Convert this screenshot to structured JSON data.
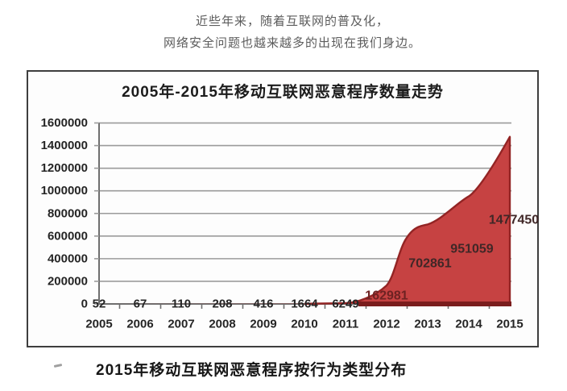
{
  "intro": {
    "line1": "近些年来，随着互联网的普及化，",
    "line2": "网络安全问题也越来越多的出现在我们身边。",
    "color": "#5c5c5c"
  },
  "chart_data": {
    "type": "area",
    "title": "2005年-2015年移动互联网恶意程序数量走势",
    "categories": [
      "2005",
      "2006",
      "2007",
      "2008",
      "2009",
      "2010",
      "2011",
      "2012",
      "2013",
      "2014",
      "2015"
    ],
    "values": [
      52,
      67,
      110,
      208,
      416,
      1664,
      6249,
      162981,
      702861,
      951059,
      1477450
    ],
    "value_labels": [
      "52",
      "67",
      "110",
      "208",
      "416",
      "1664",
      "6249",
      "162981",
      "702861",
      "951059",
      "1477450"
    ],
    "ytick_labels": [
      "0",
      "200000",
      "400000",
      "600000",
      "800000",
      "1000000",
      "1200000",
      "1400000",
      "1600000"
    ],
    "ylim": [
      0,
      1600000
    ],
    "ytick_step": 200000,
    "grid": true,
    "legend": "none",
    "colors": {
      "area_fill": "#c64242",
      "area_stroke": "#932424",
      "baseline_strip": "#7a1d1d",
      "gridline": "#9b9b9b",
      "axis": "#6f6f6f",
      "tick_text": "#252525",
      "data_label": "#402727",
      "data_label_first": "#6e2222",
      "panel_border": "#3e3e3e",
      "title_text": "#1c1c1c"
    }
  },
  "footer": {
    "title": "2015年移动互联网恶意程序按行为类型分布"
  }
}
